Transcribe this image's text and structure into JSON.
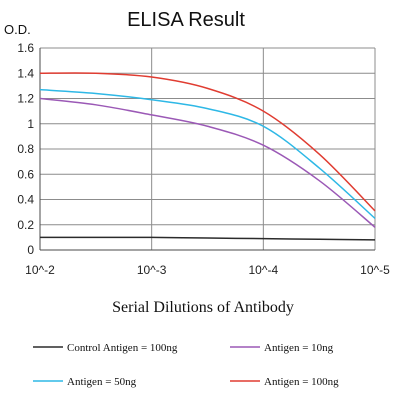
{
  "chart_data": {
    "type": "line",
    "title": "ELISA Result",
    "ylabel": "O.D.",
    "xlabel": "Serial Dilutions of Antibody",
    "x_scale": "log",
    "x_reverse": true,
    "categories": [
      "10^-2",
      "10^-3",
      "10^-4",
      "10^-5"
    ],
    "x": [
      0.01,
      0.003162,
      0.001,
      0.0003162,
      0.0001,
      3.162e-05,
      1e-05
    ],
    "ylim": [
      0,
      1.6
    ],
    "yticks": [
      "0",
      "0.2",
      "0.4",
      "0.6",
      "0.8",
      "1",
      "1.2",
      "1.4",
      "1.6"
    ],
    "grid": true,
    "legend": "bottom",
    "series": [
      {
        "name": "Control Antigen = 100ng",
        "color": "#2b2b2b",
        "values": [
          0.1,
          0.1,
          0.1,
          0.095,
          0.09,
          0.085,
          0.08
        ]
      },
      {
        "name": "Antigen = 10ng",
        "color": "#9b59b6",
        "values": [
          1.2,
          1.15,
          1.07,
          0.98,
          0.83,
          0.55,
          0.18
        ]
      },
      {
        "name": "Antigen = 50ng",
        "color": "#2eb8e6",
        "values": [
          1.27,
          1.24,
          1.19,
          1.12,
          0.98,
          0.65,
          0.25
        ]
      },
      {
        "name": "Antigen = 100ng",
        "color": "#e03c31",
        "values": [
          1.4,
          1.4,
          1.37,
          1.28,
          1.1,
          0.76,
          0.31
        ]
      }
    ]
  }
}
